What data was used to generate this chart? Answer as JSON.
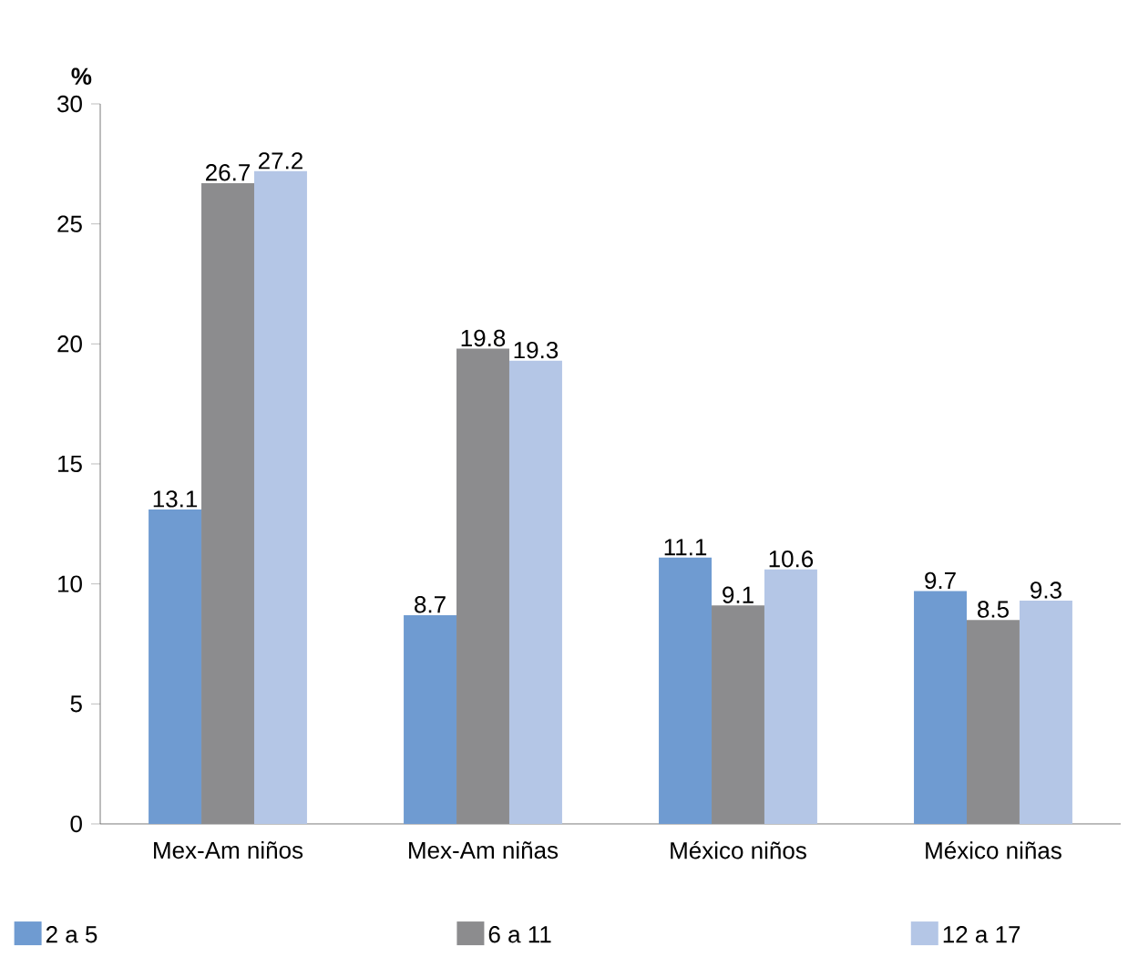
{
  "chart_data": {
    "type": "bar",
    "ylabel": "%",
    "categories": [
      "Mex-Am niños",
      "Mex-Am niñas",
      "México niños",
      "México niñas"
    ],
    "series": [
      {
        "name": "2 a 5",
        "color": "#6f9bd1",
        "values": [
          13.1,
          8.7,
          11.1,
          9.7
        ]
      },
      {
        "name": "6 a 11",
        "color": "#8c8c8e",
        "values": [
          26.7,
          19.8,
          9.1,
          8.5
        ]
      },
      {
        "name": "12 a 17",
        "color": "#b4c6e6",
        "values": [
          27.2,
          19.3,
          10.6,
          9.3
        ]
      }
    ],
    "ylim": [
      0,
      30
    ],
    "yticks": [
      0,
      5,
      10,
      15,
      20,
      25,
      30
    ],
    "data_labels": true,
    "legend": "bottom"
  }
}
